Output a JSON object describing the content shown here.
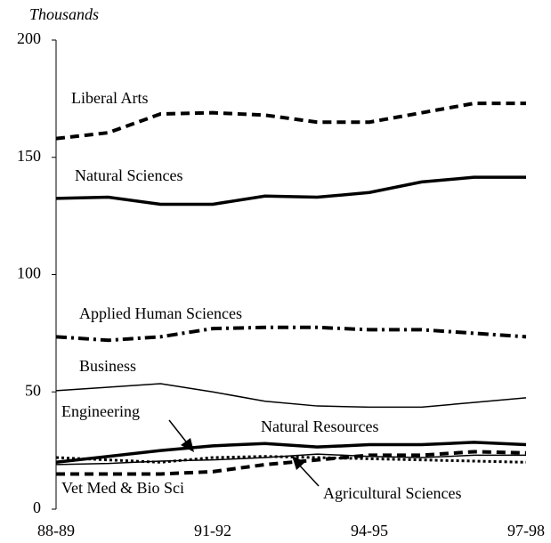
{
  "chart_data": {
    "type": "line",
    "y_label": "Thousands",
    "categories": [
      "88-89",
      null,
      null,
      "91-92",
      null,
      null,
      "94-95",
      null,
      null,
      "97-98"
    ],
    "ylim": [
      0,
      200
    ],
    "yticks": [
      0,
      50,
      100,
      150,
      200
    ],
    "series": [
      {
        "name": "Liberal Arts",
        "color": "#000000",
        "style": "dashed",
        "values": [
          158,
          160.5,
          168.5,
          169,
          168,
          165,
          165,
          169,
          173,
          173
        ]
      },
      {
        "name": "Natural Sciences",
        "color": "#000000",
        "style": "solid",
        "values": [
          132.5,
          133,
          130,
          130,
          133.5,
          133,
          135,
          139.5,
          141.5,
          141.5
        ]
      },
      {
        "name": "Applied Human Sciences",
        "color": "#000000",
        "style": "dashdot",
        "values": [
          73.5,
          72,
          73.5,
          77,
          77.5,
          77.5,
          76.5,
          76.5,
          75,
          73.5
        ]
      },
      {
        "name": "Business",
        "color": "#000000",
        "style": "thin",
        "values": [
          50.5,
          52,
          53.5,
          50,
          46,
          44,
          43.5,
          43.5,
          45.5,
          47.5
        ]
      },
      {
        "name": "Engineering",
        "color": "#000000",
        "style": "dotted",
        "values": [
          22,
          21,
          20,
          22,
          22.5,
          22,
          21.5,
          21,
          20.5,
          20
        ]
      },
      {
        "name": "Natural Resources",
        "color": "#000000",
        "style": "solid",
        "values": [
          20,
          22.5,
          25,
          27,
          28,
          26.5,
          27.5,
          27.5,
          28.5,
          27.5
        ]
      },
      {
        "name": "Vet Med & Bio Sci",
        "color": "#000000",
        "style": "dashed",
        "values": [
          15,
          15,
          15,
          16,
          19,
          21,
          23,
          23,
          24.5,
          24
        ]
      },
      {
        "name": "Agricultural Sciences",
        "color": "#000000",
        "style": "thin",
        "values": [
          19,
          19.5,
          20.5,
          21,
          22,
          23.5,
          22.5,
          22,
          23,
          23
        ]
      }
    ]
  }
}
